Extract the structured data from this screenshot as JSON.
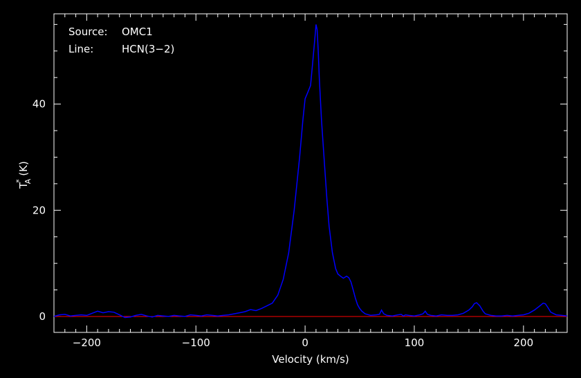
{
  "chart_data": {
    "type": "line",
    "annotations": [
      {
        "label": "Source:",
        "value": "OMC1"
      },
      {
        "label": "Line:",
        "value": "HCN(3−2)"
      }
    ],
    "xlabel": "Velocity (km/s)",
    "ylabel": "T",
    "ylabel_sup": "*",
    "ylabel_sub": "A",
    "ylabel_unit": "(K)",
    "xlim": [
      -230,
      240
    ],
    "ylim": [
      -3,
      57
    ],
    "xticks": [
      -200,
      -100,
      0,
      100,
      200
    ],
    "xtick_labels": [
      "−200",
      "−100",
      "0",
      "100",
      "200"
    ],
    "yticks": [
      0,
      20,
      40
    ],
    "ytick_labels": [
      "0",
      "20",
      "40"
    ],
    "grid": false,
    "series": [
      {
        "color": "#0000ff",
        "x": [
          -230,
          -225,
          -220,
          -215,
          -210,
          -205,
          -200,
          -195,
          -190,
          -185,
          -180,
          -175,
          -170,
          -165,
          -160,
          -155,
          -150,
          -145,
          -140,
          -135,
          -130,
          -125,
          -120,
          -115,
          -110,
          -105,
          -100,
          -95,
          -90,
          -85,
          -80,
          -75,
          -70,
          -65,
          -60,
          -55,
          -50,
          -45,
          -40,
          -35,
          -30,
          -25,
          -20,
          -15,
          -10,
          -5,
          -2,
          0,
          2,
          5,
          7,
          9,
          10,
          11,
          12,
          13,
          15,
          18,
          20,
          22,
          25,
          28,
          30,
          33,
          35,
          38,
          40,
          42,
          44,
          46,
          48,
          50,
          52,
          55,
          60,
          65,
          68,
          70,
          72,
          75,
          80,
          85,
          88,
          90,
          92,
          95,
          100,
          105,
          108,
          110,
          112,
          115,
          120,
          125,
          130,
          135,
          140,
          145,
          150,
          153,
          155,
          157,
          160,
          163,
          165,
          170,
          175,
          180,
          185,
          190,
          195,
          200,
          205,
          210,
          215,
          218,
          220,
          222,
          225,
          230,
          235,
          240
        ],
        "y": [
          0,
          0.3,
          0.4,
          0.1,
          0.2,
          0.3,
          0.2,
          0.6,
          1.0,
          0.7,
          0.9,
          0.8,
          0.3,
          -0.2,
          -0.1,
          0.2,
          0.4,
          0.1,
          -0.1,
          0.2,
          0.1,
          0,
          0.2,
          0.1,
          0,
          0.3,
          0.2,
          0.1,
          0.3,
          0.2,
          0.1,
          0.2,
          0.3,
          0.5,
          0.7,
          0.9,
          1.3,
          1.1,
          1.5,
          2.0,
          2.5,
          4.0,
          7.0,
          12.0,
          20.0,
          30.0,
          37.0,
          41.0,
          42.0,
          43.5,
          48.0,
          52.5,
          55.0,
          54.0,
          50.0,
          45.0,
          37.0,
          28.0,
          22.0,
          17.0,
          12.0,
          9.0,
          8.0,
          7.5,
          7.2,
          7.6,
          7.3,
          6.5,
          5.0,
          3.5,
          2.2,
          1.5,
          1.0,
          0.5,
          0.2,
          0.3,
          0.4,
          1.2,
          0.5,
          0.2,
          0.1,
          0.3,
          0.4,
          0.1,
          0.3,
          0.2,
          0.1,
          0.3,
          0.5,
          1.0,
          0.4,
          0.2,
          0.1,
          0.3,
          0.2,
          0.2,
          0.3,
          0.6,
          1.2,
          1.8,
          2.4,
          2.6,
          2.0,
          1.0,
          0.5,
          0.2,
          0.1,
          0.1,
          0.2,
          0.1,
          0.2,
          0.3,
          0.6,
          1.2,
          2.0,
          2.5,
          2.4,
          1.8,
          0.8,
          0.3,
          0.2,
          0.1
        ]
      }
    ],
    "baseline": {
      "y": 0,
      "color": "#ff0000"
    },
    "colors": {
      "background": "#000000",
      "frame": "#ffffff",
      "text": "#ffffff",
      "spectrum": "#0000ff",
      "baseline": "#ff0000"
    }
  }
}
